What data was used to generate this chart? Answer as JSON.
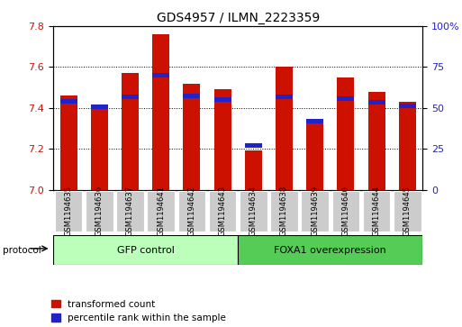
{
  "title": "GDS4957 / ILMN_2223359",
  "samples": [
    "GSM1194635",
    "GSM1194636",
    "GSM1194637",
    "GSM1194641",
    "GSM1194642",
    "GSM1194643",
    "GSM1194634",
    "GSM1194638",
    "GSM1194639",
    "GSM1194640",
    "GSM1194644",
    "GSM1194645"
  ],
  "red_values": [
    7.46,
    7.4,
    7.57,
    7.76,
    7.52,
    7.49,
    7.19,
    7.6,
    7.33,
    7.55,
    7.48,
    7.43
  ],
  "blue_values": [
    7.43,
    7.405,
    7.455,
    7.562,
    7.458,
    7.443,
    7.215,
    7.452,
    7.333,
    7.447,
    7.428,
    7.41
  ],
  "ymin": 7.0,
  "ymax": 7.8,
  "yticks": [
    7.0,
    7.2,
    7.4,
    7.6,
    7.8
  ],
  "right_yticks": [
    0,
    25,
    50,
    75,
    100
  ],
  "right_ylabels": [
    "0",
    "25",
    "50",
    "75",
    "100%"
  ],
  "group1_label": "GFP control",
  "group2_label": "FOXA1 overexpression",
  "group1_count": 6,
  "group2_count": 6,
  "protocol_label": "protocol",
  "bar_color_red": "#cc1100",
  "bar_color_blue": "#2222cc",
  "bar_width": 0.55,
  "bar_base": 7.0,
  "group1_bg": "#bbffbb",
  "group2_bg": "#55cc55",
  "tick_bg": "#cccccc",
  "legend_red": "transformed count",
  "legend_blue": "percentile rank within the sample",
  "title_fontsize": 10,
  "tick_fontsize": 7,
  "label_fontsize": 8,
  "blue_bar_height": 0.022
}
